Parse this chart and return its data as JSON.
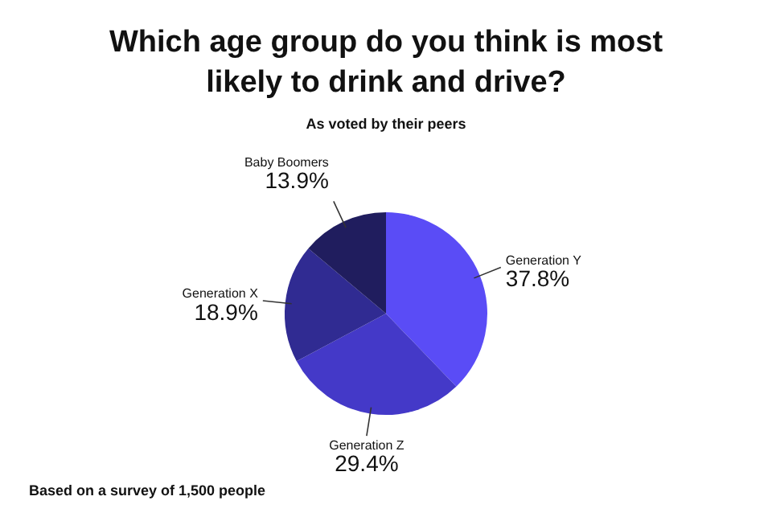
{
  "chart_data": {
    "type": "pie",
    "title": "Which age group do you think is most likely to drink and drive?",
    "subtitle": "As voted by their peers",
    "categories": [
      "Generation Y",
      "Generation Z",
      "Generation X",
      "Baby Boomers"
    ],
    "values": [
      37.8,
      29.4,
      18.9,
      13.9
    ],
    "colors": [
      "#5a4cf6",
      "#4439c8",
      "#302b92",
      "#201d5e"
    ],
    "value_labels": [
      "37.8%",
      "29.4%",
      "18.9%",
      "13.9%"
    ],
    "legend": false,
    "annotations": [
      "Based on a survey of 1,500 people"
    ]
  }
}
